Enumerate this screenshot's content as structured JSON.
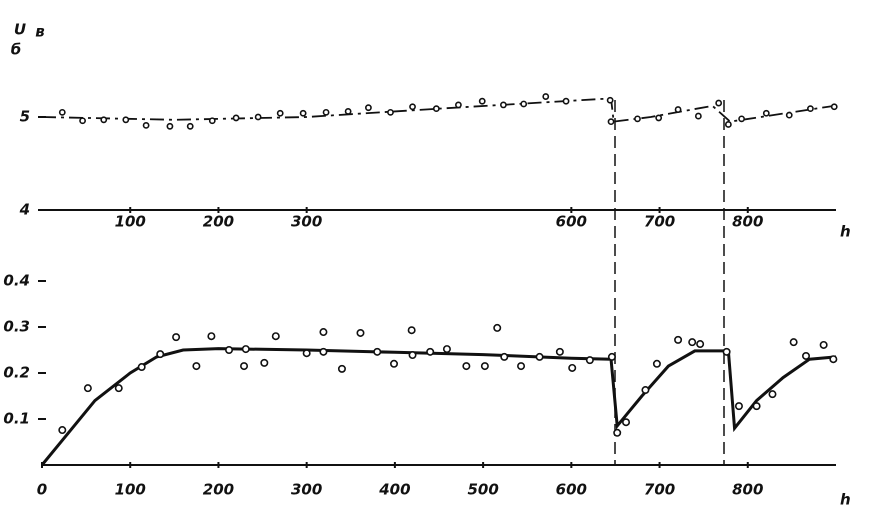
{
  "chart_data": [
    {
      "type": "line",
      "y_label": "U",
      "y_label_sub": "б",
      "y_unit": "в",
      "x_label": "h",
      "xlim": [
        0,
        900
      ],
      "ylim": [
        4,
        6
      ],
      "xticks": [
        100,
        200,
        300,
        600,
        700,
        800
      ],
      "yticks": [
        4,
        5
      ],
      "line_style": "dash-dot",
      "color": "#111",
      "line": {
        "x": [
          0,
          150,
          300,
          450,
          645,
          648,
          690,
          760,
          780,
          898
        ],
        "values": [
          5.0,
          4.97,
          5.0,
          5.09,
          5.2,
          4.95,
          5.0,
          5.12,
          4.95,
          5.12
        ]
      },
      "points": {
        "x": [
          23,
          46,
          70,
          95,
          118,
          145,
          168,
          193,
          220,
          245,
          270,
          296,
          322,
          347,
          370,
          395,
          420,
          447,
          472,
          499,
          523,
          546,
          571,
          594,
          644,
          645,
          675,
          699,
          721,
          744,
          767,
          778,
          793,
          821,
          847,
          871,
          898
        ],
        "values": [
          5.05,
          4.96,
          4.97,
          4.97,
          4.91,
          4.9,
          4.9,
          4.96,
          4.99,
          5.0,
          5.04,
          5.04,
          5.05,
          5.06,
          5.1,
          5.05,
          5.11,
          5.09,
          5.13,
          5.17,
          5.13,
          5.14,
          5.22,
          5.17,
          5.18,
          4.95,
          4.98,
          4.99,
          5.08,
          5.01,
          5.15,
          4.92,
          4.98,
          5.04,
          5.02,
          5.09,
          5.11
        ]
      }
    },
    {
      "type": "line",
      "x_label": "h",
      "xlim": [
        0,
        900
      ],
      "ylim": [
        0,
        0.45
      ],
      "xticks": [
        0,
        100,
        200,
        300,
        400,
        500,
        600,
        700,
        800
      ],
      "yticks": [
        0.1,
        0.2,
        0.3,
        0.4
      ],
      "line_style": "solid",
      "color": "#111",
      "line": {
        "x": [
          0,
          30,
          60,
          100,
          130,
          160,
          200,
          300,
          400,
          500,
          600,
          645,
          652,
          680,
          710,
          740,
          778,
          785,
          810,
          840,
          870,
          900
        ],
        "values": [
          0,
          0.07,
          0.14,
          0.2,
          0.235,
          0.25,
          0.253,
          0.25,
          0.245,
          0.24,
          0.232,
          0.23,
          0.085,
          0.15,
          0.215,
          0.248,
          0.248,
          0.08,
          0.14,
          0.19,
          0.23,
          0.235
        ]
      },
      "points": {
        "x": [
          23,
          52,
          87,
          113,
          134,
          152,
          175,
          192,
          212,
          229,
          231,
          252,
          265,
          300,
          319,
          319,
          340,
          361,
          380,
          399,
          419,
          420,
          440,
          459,
          481,
          502,
          516,
          524,
          543,
          564,
          587,
          601,
          621,
          646,
          652,
          662,
          684,
          697,
          721,
          737,
          746,
          776,
          790,
          810,
          828,
          852,
          866,
          886,
          897
        ],
        "values": [
          0.076,
          0.167,
          0.167,
          0.213,
          0.241,
          0.278,
          0.215,
          0.28,
          0.25,
          0.215,
          0.252,
          0.222,
          0.28,
          0.243,
          0.289,
          0.246,
          0.209,
          0.287,
          0.246,
          0.22,
          0.293,
          0.239,
          0.246,
          0.252,
          0.215,
          0.215,
          0.298,
          0.235,
          0.215,
          0.235,
          0.246,
          0.211,
          0.228,
          0.235,
          0.07,
          0.093,
          0.163,
          0.22,
          0.272,
          0.267,
          0.263,
          0.246,
          0.128,
          0.128,
          0.154,
          0.267,
          0.237,
          0.261,
          0.23
        ]
      }
    }
  ]
}
